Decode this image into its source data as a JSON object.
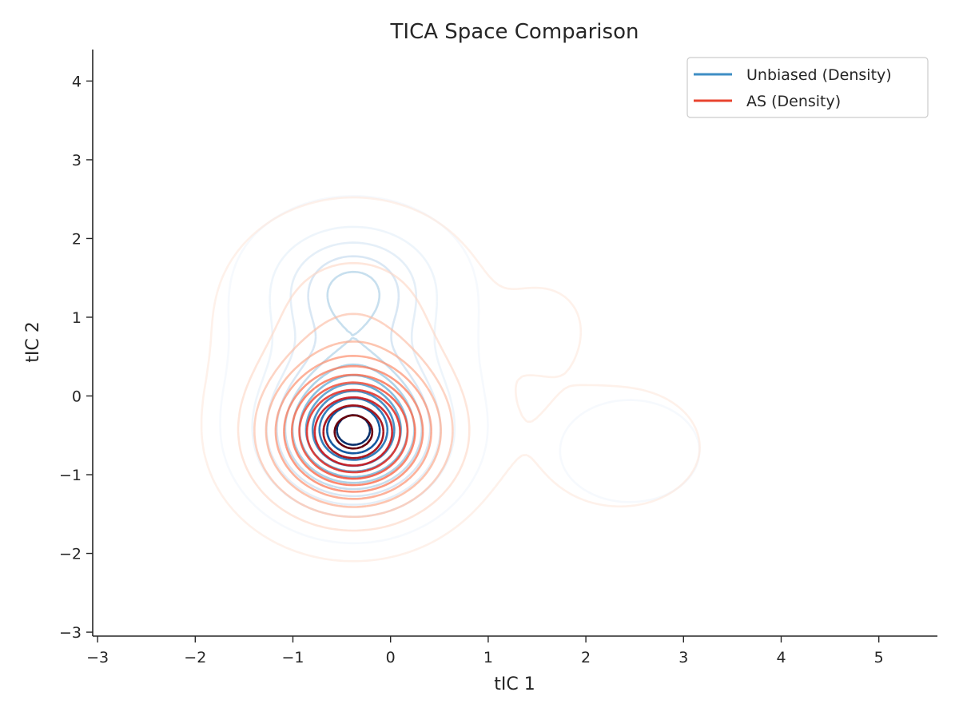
{
  "chart_data": {
    "type": "contour",
    "title": "TICA Space Comparison",
    "xlabel": "tIC 1",
    "ylabel": "tIC 2",
    "xlim": [
      -3.05,
      5.6
    ],
    "ylim": [
      -3.05,
      4.4
    ],
    "x_ticks": [
      -3,
      -2,
      -1,
      0,
      1,
      2,
      3,
      4,
      5
    ],
    "y_ticks": [
      -3,
      -2,
      -1,
      0,
      1,
      2,
      3,
      4
    ],
    "x_tick_labels": [
      "−3",
      "−2",
      "−1",
      "0",
      "1",
      "2",
      "3",
      "4",
      "5"
    ],
    "y_tick_labels": [
      "−3",
      "−2",
      "−1",
      "0",
      "1",
      "2",
      "3",
      "4"
    ],
    "grid": false,
    "legend_position": "top-right",
    "series": [
      {
        "name": "Unbiased (Density)",
        "color": "#3e8ec4",
        "colormap": "Blues",
        "main_mode": {
          "x": -0.38,
          "y": -0.48
        },
        "secondary_mode": {
          "x": 2.45,
          "y": -0.7
        },
        "levels": 12
      },
      {
        "name": "AS (Density)",
        "color": "#e8442f",
        "colormap": "Reds",
        "main_mode": {
          "x": -0.38,
          "y": -0.48
        },
        "secondary_mode": {
          "x": 2.35,
          "y": -0.65
        },
        "levels": 12
      }
    ]
  }
}
